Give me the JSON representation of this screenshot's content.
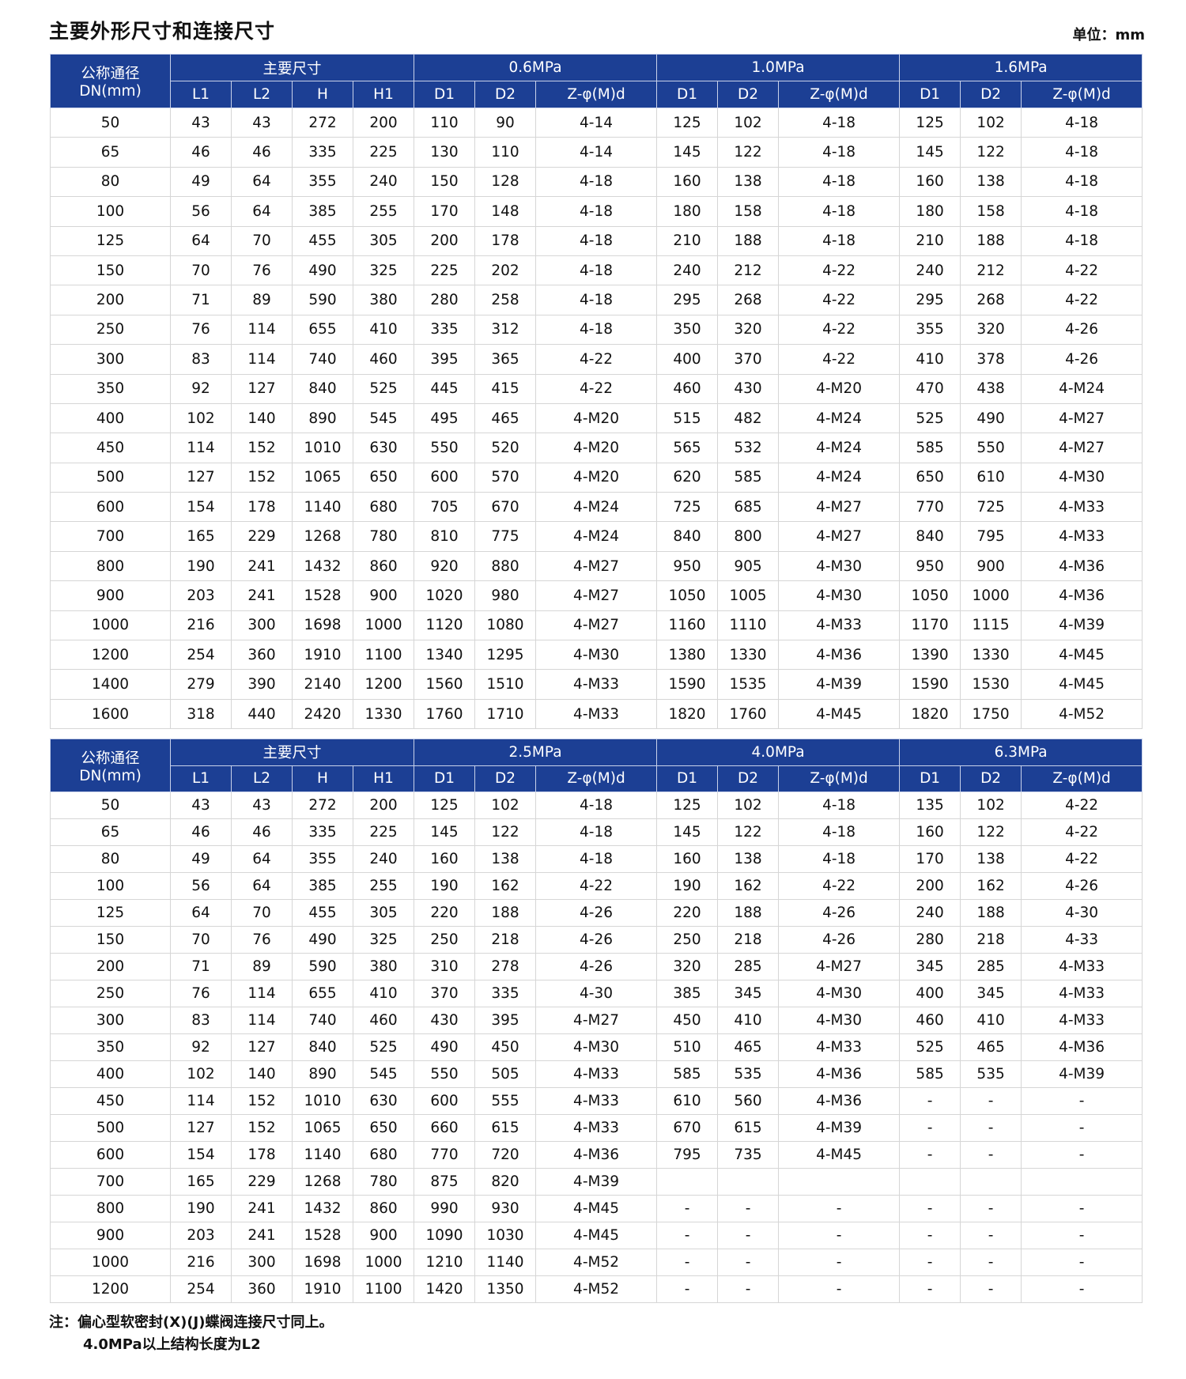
{
  "title": "主要外形尺寸和连接尺寸",
  "unit": "单位：mm",
  "header_color": "#1c3f94",
  "dn_header": [
    "公称通径",
    "DN(mm)"
  ],
  "main_dims_header": "主要尺寸",
  "main_dim_cols": [
    "L1",
    "L2",
    "H",
    "H1"
  ],
  "pressure_cols": [
    "D1",
    "D2",
    "Z-φ(M)d"
  ],
  "tables": [
    {
      "pressures": [
        "0.6MPa",
        "1.0MPa",
        "1.6MPa"
      ],
      "rows": [
        [
          "50",
          "43",
          "43",
          "272",
          "200",
          "110",
          "90",
          "4-14",
          "125",
          "102",
          "4-18",
          "125",
          "102",
          "4-18"
        ],
        [
          "65",
          "46",
          "46",
          "335",
          "225",
          "130",
          "110",
          "4-14",
          "145",
          "122",
          "4-18",
          "145",
          "122",
          "4-18"
        ],
        [
          "80",
          "49",
          "64",
          "355",
          "240",
          "150",
          "128",
          "4-18",
          "160",
          "138",
          "4-18",
          "160",
          "138",
          "4-18"
        ],
        [
          "100",
          "56",
          "64",
          "385",
          "255",
          "170",
          "148",
          "4-18",
          "180",
          "158",
          "4-18",
          "180",
          "158",
          "4-18"
        ],
        [
          "125",
          "64",
          "70",
          "455",
          "305",
          "200",
          "178",
          "4-18",
          "210",
          "188",
          "4-18",
          "210",
          "188",
          "4-18"
        ],
        [
          "150",
          "70",
          "76",
          "490",
          "325",
          "225",
          "202",
          "4-18",
          "240",
          "212",
          "4-22",
          "240",
          "212",
          "4-22"
        ],
        [
          "200",
          "71",
          "89",
          "590",
          "380",
          "280",
          "258",
          "4-18",
          "295",
          "268",
          "4-22",
          "295",
          "268",
          "4-22"
        ],
        [
          "250",
          "76",
          "114",
          "655",
          "410",
          "335",
          "312",
          "4-18",
          "350",
          "320",
          "4-22",
          "355",
          "320",
          "4-26"
        ],
        [
          "300",
          "83",
          "114",
          "740",
          "460",
          "395",
          "365",
          "4-22",
          "400",
          "370",
          "4-22",
          "410",
          "378",
          "4-26"
        ],
        [
          "350",
          "92",
          "127",
          "840",
          "525",
          "445",
          "415",
          "4-22",
          "460",
          "430",
          "4-M20",
          "470",
          "438",
          "4-M24"
        ],
        [
          "400",
          "102",
          "140",
          "890",
          "545",
          "495",
          "465",
          "4-M20",
          "515",
          "482",
          "4-M24",
          "525",
          "490",
          "4-M27"
        ],
        [
          "450",
          "114",
          "152",
          "1010",
          "630",
          "550",
          "520",
          "4-M20",
          "565",
          "532",
          "4-M24",
          "585",
          "550",
          "4-M27"
        ],
        [
          "500",
          "127",
          "152",
          "1065",
          "650",
          "600",
          "570",
          "4-M20",
          "620",
          "585",
          "4-M24",
          "650",
          "610",
          "4-M30"
        ],
        [
          "600",
          "154",
          "178",
          "1140",
          "680",
          "705",
          "670",
          "4-M24",
          "725",
          "685",
          "4-M27",
          "770",
          "725",
          "4-M33"
        ],
        [
          "700",
          "165",
          "229",
          "1268",
          "780",
          "810",
          "775",
          "4-M24",
          "840",
          "800",
          "4-M27",
          "840",
          "795",
          "4-M33"
        ],
        [
          "800",
          "190",
          "241",
          "1432",
          "860",
          "920",
          "880",
          "4-M27",
          "950",
          "905",
          "4-M30",
          "950",
          "900",
          "4-M36"
        ],
        [
          "900",
          "203",
          "241",
          "1528",
          "900",
          "1020",
          "980",
          "4-M27",
          "1050",
          "1005",
          "4-M30",
          "1050",
          "1000",
          "4-M36"
        ],
        [
          "1000",
          "216",
          "300",
          "1698",
          "1000",
          "1120",
          "1080",
          "4-M27",
          "1160",
          "1110",
          "4-M33",
          "1170",
          "1115",
          "4-M39"
        ],
        [
          "1200",
          "254",
          "360",
          "1910",
          "1100",
          "1340",
          "1295",
          "4-M30",
          "1380",
          "1330",
          "4-M36",
          "1390",
          "1330",
          "4-M45"
        ],
        [
          "1400",
          "279",
          "390",
          "2140",
          "1200",
          "1560",
          "1510",
          "4-M33",
          "1590",
          "1535",
          "4-M39",
          "1590",
          "1530",
          "4-M45"
        ],
        [
          "1600",
          "318",
          "440",
          "2420",
          "1330",
          "1760",
          "1710",
          "4-M33",
          "1820",
          "1760",
          "4-M45",
          "1820",
          "1750",
          "4-M52"
        ]
      ]
    },
    {
      "pressures": [
        "2.5MPa",
        "4.0MPa",
        "6.3MPa"
      ],
      "rows": [
        [
          "50",
          "43",
          "43",
          "272",
          "200",
          "125",
          "102",
          "4-18",
          "125",
          "102",
          "4-18",
          "135",
          "102",
          "4-22"
        ],
        [
          "65",
          "46",
          "46",
          "335",
          "225",
          "145",
          "122",
          "4-18",
          "145",
          "122",
          "4-18",
          "160",
          "122",
          "4-22"
        ],
        [
          "80",
          "49",
          "64",
          "355",
          "240",
          "160",
          "138",
          "4-18",
          "160",
          "138",
          "4-18",
          "170",
          "138",
          "4-22"
        ],
        [
          "100",
          "56",
          "64",
          "385",
          "255",
          "190",
          "162",
          "4-22",
          "190",
          "162",
          "4-22",
          "200",
          "162",
          "4-26"
        ],
        [
          "125",
          "64",
          "70",
          "455",
          "305",
          "220",
          "188",
          "4-26",
          "220",
          "188",
          "4-26",
          "240",
          "188",
          "4-30"
        ],
        [
          "150",
          "70",
          "76",
          "490",
          "325",
          "250",
          "218",
          "4-26",
          "250",
          "218",
          "4-26",
          "280",
          "218",
          "4-33"
        ],
        [
          "200",
          "71",
          "89",
          "590",
          "380",
          "310",
          "278",
          "4-26",
          "320",
          "285",
          "4-M27",
          "345",
          "285",
          "4-M33"
        ],
        [
          "250",
          "76",
          "114",
          "655",
          "410",
          "370",
          "335",
          "4-30",
          "385",
          "345",
          "4-M30",
          "400",
          "345",
          "4-M33"
        ],
        [
          "300",
          "83",
          "114",
          "740",
          "460",
          "430",
          "395",
          "4-M27",
          "450",
          "410",
          "4-M30",
          "460",
          "410",
          "4-M33"
        ],
        [
          "350",
          "92",
          "127",
          "840",
          "525",
          "490",
          "450",
          "4-M30",
          "510",
          "465",
          "4-M33",
          "525",
          "465",
          "4-M36"
        ],
        [
          "400",
          "102",
          "140",
          "890",
          "545",
          "550",
          "505",
          "4-M33",
          "585",
          "535",
          "4-M36",
          "585",
          "535",
          "4-M39"
        ],
        [
          "450",
          "114",
          "152",
          "1010",
          "630",
          "600",
          "555",
          "4-M33",
          "610",
          "560",
          "4-M36",
          "-",
          "-",
          "-"
        ],
        [
          "500",
          "127",
          "152",
          "1065",
          "650",
          "660",
          "615",
          "4-M33",
          "670",
          "615",
          "4-M39",
          "-",
          "-",
          "-"
        ],
        [
          "600",
          "154",
          "178",
          "1140",
          "680",
          "770",
          "720",
          "4-M36",
          "795",
          "735",
          "4-M45",
          "-",
          "-",
          "-"
        ],
        [
          "700",
          "165",
          "229",
          "1268",
          "780",
          "875",
          "820",
          "4-M39",
          "",
          "",
          "",
          "",
          "",
          ""
        ],
        [
          "800",
          "190",
          "241",
          "1432",
          "860",
          "990",
          "930",
          "4-M45",
          "-",
          "-",
          "-",
          "-",
          "-",
          "-"
        ],
        [
          "900",
          "203",
          "241",
          "1528",
          "900",
          "1090",
          "1030",
          "4-M45",
          "-",
          "-",
          "-",
          "-",
          "-",
          "-"
        ],
        [
          "1000",
          "216",
          "300",
          "1698",
          "1000",
          "1210",
          "1140",
          "4-M52",
          "-",
          "-",
          "-",
          "-",
          "-",
          "-"
        ],
        [
          "1200",
          "254",
          "360",
          "1910",
          "1100",
          "1420",
          "1350",
          "4-M52",
          "-",
          "-",
          "-",
          "-",
          "-",
          "-"
        ]
      ]
    }
  ],
  "notes": [
    "注：偏心型软密封(X)(J)蝶阀连接尺寸同上。",
    "4.0MPa以上结构长度为L2"
  ]
}
